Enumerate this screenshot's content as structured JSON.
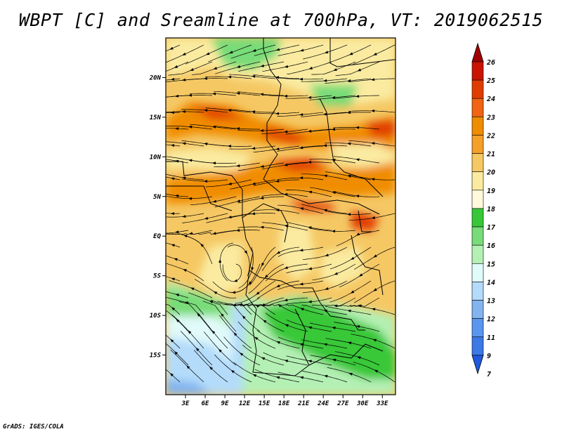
{
  "title": "WBPT [C] and Sreamline at 700hPa, VT: 2019062515",
  "credit": "GrADS: IGES/COLA",
  "map": {
    "lon_range": [
      0,
      35
    ],
    "lat_range": [
      -20,
      25
    ],
    "x_ticks": [
      {
        "lon": 3,
        "label": "3E"
      },
      {
        "lon": 6,
        "label": "6E"
      },
      {
        "lon": 9,
        "label": "9E"
      },
      {
        "lon": 12,
        "label": "12E"
      },
      {
        "lon": 15,
        "label": "15E"
      },
      {
        "lon": 18,
        "label": "18E"
      },
      {
        "lon": 21,
        "label": "21E"
      },
      {
        "lon": 24,
        "label": "24E"
      },
      {
        "lon": 27,
        "label": "27E"
      },
      {
        "lon": 30,
        "label": "30E"
      },
      {
        "lon": 33,
        "label": "33E"
      }
    ],
    "y_ticks": [
      {
        "lat": 20,
        "label": "20N"
      },
      {
        "lat": 15,
        "label": "15N"
      },
      {
        "lat": 10,
        "label": "10N"
      },
      {
        "lat": 5,
        "label": "5N"
      },
      {
        "lat": 0,
        "label": "EQ"
      },
      {
        "lat": -5,
        "label": "5S"
      },
      {
        "lat": -10,
        "label": "10S"
      },
      {
        "lat": -15,
        "label": "15S"
      }
    ],
    "field": "wet-bulb potential temperature",
    "streamlines": "700hPa wind"
  },
  "colorbar": {
    "labels": [
      "26",
      "25",
      "24",
      "23",
      "22",
      "21",
      "20",
      "19",
      "18",
      "17",
      "16",
      "15",
      "14",
      "13",
      "12",
      "11",
      "9",
      "7"
    ],
    "colors": [
      "#a00000",
      "#c81400",
      "#e13c00",
      "#f06414",
      "#f08c00",
      "#f5a028",
      "#f5c864",
      "#faeba0",
      "#fffadc",
      "#37c837",
      "#78dc78",
      "#b4f0b4",
      "#e1fafa",
      "#b4dcfa",
      "#82b4f0",
      "#5a96f0",
      "#3c78e6",
      "#1e5adc"
    ],
    "top_arrow_color": "#a00000",
    "bottom_arrow_color": "#1e5adc"
  }
}
